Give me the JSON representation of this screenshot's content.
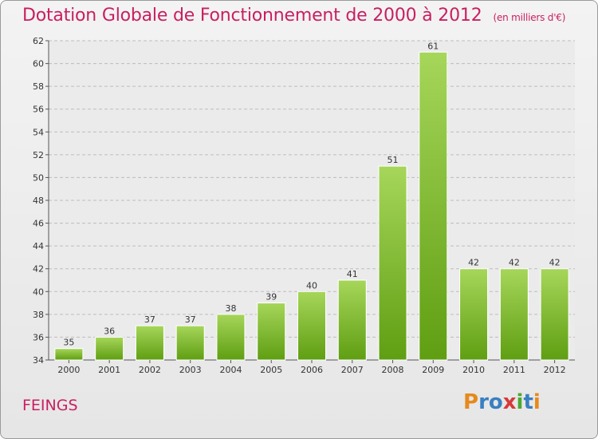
{
  "title": "Dotation Globale de Fonctionnement de 2000 à 2012",
  "unit_note": "(en milliers d'€)",
  "commune": "FEINGS",
  "logo": {
    "text": "Proxiti",
    "letters": [
      "P",
      "r",
      "o",
      "x",
      "i",
      "t",
      "i"
    ],
    "colors": [
      "#e68a1c",
      "#3a7fc1",
      "#3a7fc1",
      "#d63a3a",
      "#4aa832",
      "#3a7fc1",
      "#e68a1c"
    ]
  },
  "colors": {
    "bar_top": "#a6d65a",
    "bar_bottom": "#5f9e12",
    "title": "#c81f60"
  },
  "chart_data": {
    "type": "bar",
    "categories": [
      "2000",
      "2001",
      "2002",
      "2003",
      "2004",
      "2005",
      "2006",
      "2007",
      "2008",
      "2009",
      "2010",
      "2011",
      "2012"
    ],
    "values": [
      35,
      36,
      37,
      37,
      38,
      39,
      40,
      41,
      51,
      61,
      42,
      42,
      42
    ],
    "ylim": [
      34,
      62
    ],
    "yticks": [
      34,
      36,
      38,
      40,
      42,
      44,
      46,
      48,
      50,
      52,
      54,
      56,
      58,
      60,
      62
    ],
    "grid": true
  }
}
